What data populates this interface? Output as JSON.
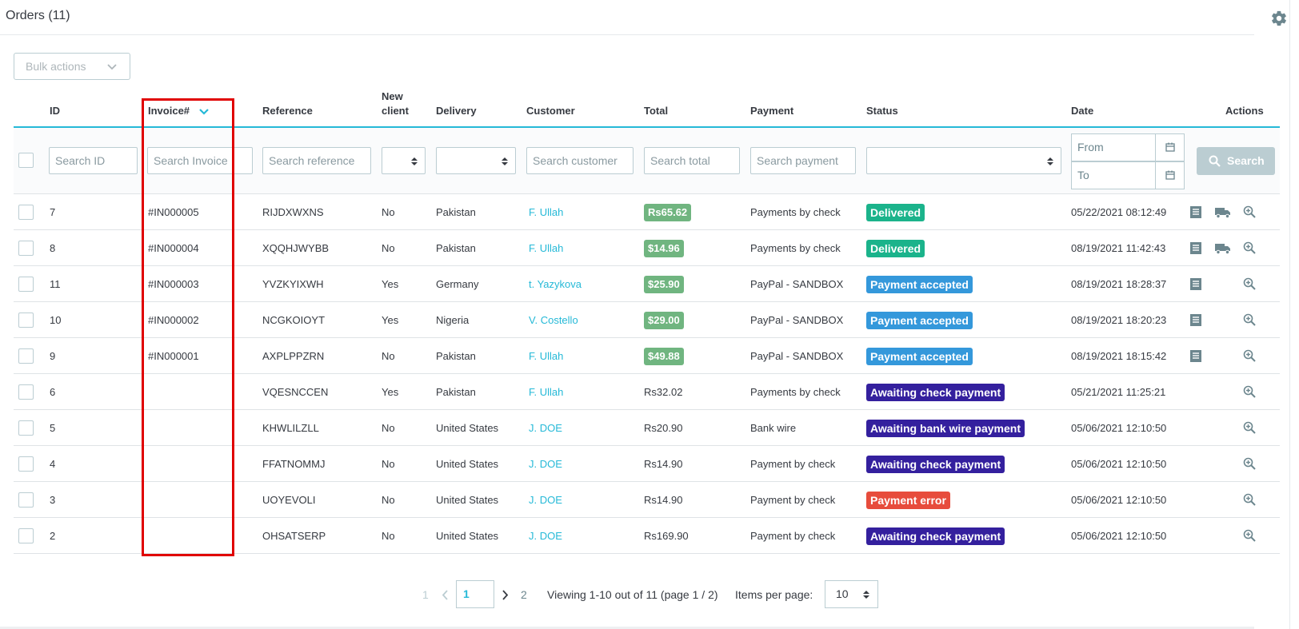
{
  "panel": {
    "title": "Orders (11)"
  },
  "toolbar": {
    "bulk_actions_label": "Bulk actions"
  },
  "columns": {
    "id": "ID",
    "invoice": "Invoice#",
    "reference": "Reference",
    "new_client_line1": "New",
    "new_client_line2": "client",
    "delivery": "Delivery",
    "customer": "Customer",
    "total": "Total",
    "payment": "Payment",
    "status": "Status",
    "date": "Date",
    "actions": "Actions"
  },
  "filters": {
    "id_placeholder": "Search ID",
    "invoice_placeholder": "Search Invoice",
    "reference_placeholder": "Search reference",
    "customer_placeholder": "Search customer",
    "total_placeholder": "Search total",
    "payment_placeholder": "Search payment",
    "date_from": "From",
    "date_to": "To",
    "search_label": "Search"
  },
  "colors": {
    "accent": "#25b9d7",
    "total_badge": "#70b580",
    "delivered": "#1bb38b",
    "payment_accepted": "#3498db",
    "awaiting": "#34209e",
    "payment_error": "#e74c3c"
  },
  "rows": [
    {
      "id": "7",
      "invoice": "#IN000005",
      "reference": "RIJDXWXNS",
      "new_client": "No",
      "delivery": "Pakistan",
      "customer": "F. Ullah",
      "total": "Rs65.62",
      "total_badge": true,
      "payment": "Payments by check",
      "status": "Delivered",
      "status_color": "#1bb38b",
      "date": "05/22/2021 08:12:49",
      "actions": [
        "invoice",
        "delivery",
        "view"
      ]
    },
    {
      "id": "8",
      "invoice": "#IN000004",
      "reference": "XQQHJWYBB",
      "new_client": "No",
      "delivery": "Pakistan",
      "customer": "F. Ullah",
      "total": "$14.96",
      "total_badge": true,
      "payment": "Payments by check",
      "status": "Delivered",
      "status_color": "#1bb38b",
      "date": "08/19/2021 11:42:43",
      "actions": [
        "invoice",
        "delivery",
        "view"
      ]
    },
    {
      "id": "11",
      "invoice": "#IN000003",
      "reference": "YVZKYIXWH",
      "new_client": "Yes",
      "delivery": "Germany",
      "customer": "t. Yazykova",
      "total": "$25.90",
      "total_badge": true,
      "payment": "PayPal - SANDBOX",
      "status": "Payment accepted",
      "status_color": "#3498db",
      "date": "08/19/2021 18:28:37",
      "actions": [
        "invoice",
        "view"
      ]
    },
    {
      "id": "10",
      "invoice": "#IN000002",
      "reference": "NCGKOIOYT",
      "new_client": "Yes",
      "delivery": "Nigeria",
      "customer": "V. Costello",
      "total": "$29.00",
      "total_badge": true,
      "payment": "PayPal - SANDBOX",
      "status": "Payment accepted",
      "status_color": "#3498db",
      "date": "08/19/2021 18:20:23",
      "actions": [
        "invoice",
        "view"
      ]
    },
    {
      "id": "9",
      "invoice": "#IN000001",
      "reference": "AXPLPPZRN",
      "new_client": "No",
      "delivery": "Pakistan",
      "customer": "F. Ullah",
      "total": "$49.88",
      "total_badge": true,
      "payment": "PayPal - SANDBOX",
      "status": "Payment accepted",
      "status_color": "#3498db",
      "date": "08/19/2021 18:15:42",
      "actions": [
        "invoice",
        "view"
      ]
    },
    {
      "id": "6",
      "invoice": "",
      "reference": "VQESNCCEN",
      "new_client": "Yes",
      "delivery": "Pakistan",
      "customer": "F. Ullah",
      "total": "Rs32.02",
      "total_badge": false,
      "payment": "Payments by check",
      "status": "Awaiting check payment",
      "status_color": "#34209e",
      "date": "05/21/2021 11:25:21",
      "actions": [
        "view"
      ]
    },
    {
      "id": "5",
      "invoice": "",
      "reference": "KHWLILZLL",
      "new_client": "No",
      "delivery": "United States",
      "customer": "J. DOE",
      "total": "Rs20.90",
      "total_badge": false,
      "payment": "Bank wire",
      "status": "Awaiting bank wire payment",
      "status_color": "#34209e",
      "date": "05/06/2021 12:10:50",
      "actions": [
        "view"
      ]
    },
    {
      "id": "4",
      "invoice": "",
      "reference": "FFATNOMMJ",
      "new_client": "No",
      "delivery": "United States",
      "customer": "J. DOE",
      "total": "Rs14.90",
      "total_badge": false,
      "payment": "Payment by check",
      "status": "Awaiting check payment",
      "status_color": "#34209e",
      "date": "05/06/2021 12:10:50",
      "actions": [
        "view"
      ]
    },
    {
      "id": "3",
      "invoice": "",
      "reference": "UOYEVOLI",
      "new_client": "No",
      "delivery": "United States",
      "customer": "J. DOE",
      "total": "Rs14.90",
      "total_badge": false,
      "payment": "Payment by check",
      "status": "Payment error",
      "status_color": "#e74c3c",
      "date": "05/06/2021 12:10:50",
      "actions": [
        "view"
      ]
    },
    {
      "id": "2",
      "invoice": "",
      "reference": "OHSATSERP",
      "new_client": "No",
      "delivery": "United States",
      "customer": "J. DOE",
      "total": "Rs169.90",
      "total_badge": false,
      "payment": "Payment by check",
      "status": "Awaiting check payment",
      "status_color": "#34209e",
      "date": "05/06/2021 12:10:50",
      "actions": [
        "view"
      ]
    }
  ],
  "pagination": {
    "first_page": "1",
    "current_page": "1",
    "next_page": "2",
    "viewing_text": "Viewing 1-10 out of 11 (page 1 / 2)",
    "items_per_page_label": "Items per page:",
    "items_per_page_value": "10"
  }
}
